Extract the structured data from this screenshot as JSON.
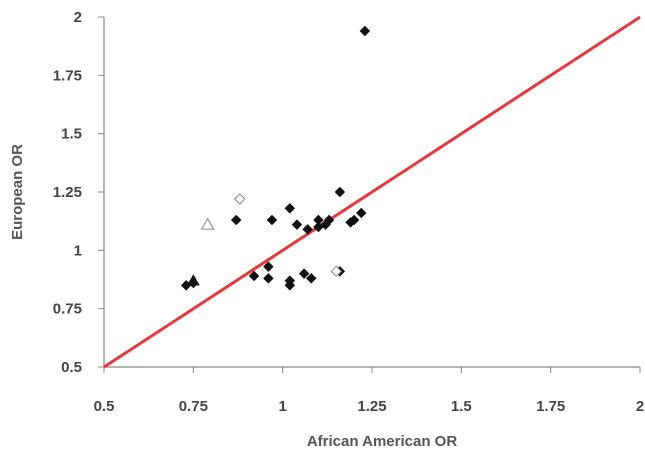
{
  "chart_data": {
    "type": "scatter",
    "xlabel": "African American OR",
    "ylabel": "European OR",
    "xlim": [
      0.5,
      2
    ],
    "ylim": [
      0.5,
      2
    ],
    "x_ticks": [
      0.5,
      0.75,
      1,
      1.25,
      1.5,
      1.75,
      2
    ],
    "x_tick_labels": [
      "0.5",
      "0.75",
      "1",
      "1.25",
      "1.5",
      "1.75",
      "2"
    ],
    "y_ticks": [
      0.5,
      0.75,
      1,
      1.25,
      1.5,
      1.75,
      2
    ],
    "y_tick_labels": [
      "0.5",
      "0.75",
      "1",
      "1.25",
      "1.5",
      "1.75",
      "2"
    ],
    "grid": false,
    "reference_line": {
      "from": [
        0.5,
        0.5
      ],
      "to": [
        2,
        2
      ],
      "color": "#e8383d"
    },
    "colors": {
      "filled": "#111111",
      "open": "#888888",
      "axis": "#888888"
    },
    "series": [
      {
        "marker": "filled-diamond",
        "points": [
          [
            1.23,
            1.94
          ],
          [
            1.16,
            1.25
          ],
          [
            1.22,
            1.16
          ],
          [
            1.19,
            1.12
          ],
          [
            1.2,
            1.13
          ],
          [
            1.02,
            1.18
          ],
          [
            0.97,
            1.13
          ],
          [
            0.87,
            1.13
          ],
          [
            1.04,
            1.11
          ],
          [
            1.07,
            1.09
          ],
          [
            1.1,
            1.13
          ],
          [
            1.1,
            1.1
          ],
          [
            1.12,
            1.11
          ],
          [
            1.13,
            1.13
          ],
          [
            0.96,
            0.93
          ],
          [
            0.92,
            0.89
          ],
          [
            0.96,
            0.88
          ],
          [
            1.02,
            0.87
          ],
          [
            1.02,
            0.85
          ],
          [
            1.06,
            0.9
          ],
          [
            1.08,
            0.88
          ],
          [
            1.16,
            0.91
          ],
          [
            0.73,
            0.85
          ],
          [
            0.75,
            0.86
          ]
        ]
      },
      {
        "marker": "open-diamond",
        "points": [
          [
            0.88,
            1.22
          ],
          [
            1.15,
            0.91
          ]
        ]
      },
      {
        "marker": "open-triangle",
        "points": [
          [
            0.79,
            1.11
          ]
        ]
      },
      {
        "marker": "filled-triangle",
        "points": [
          [
            0.75,
            0.87
          ]
        ]
      }
    ]
  }
}
